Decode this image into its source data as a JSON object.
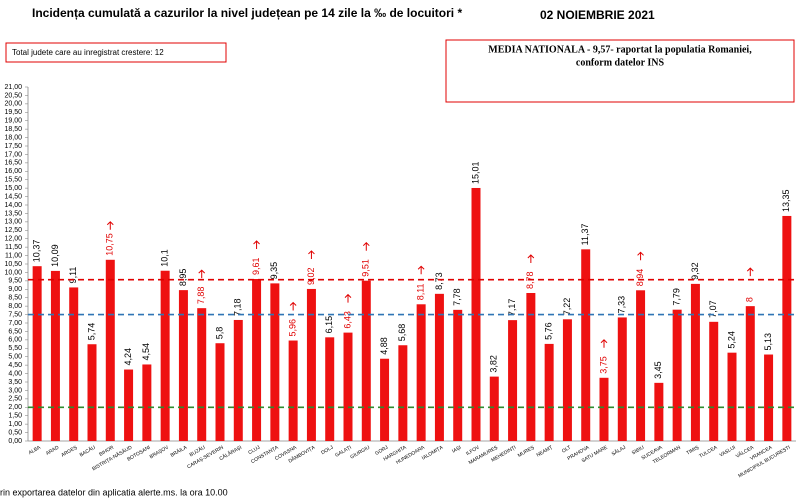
{
  "chart_data": {
    "type": "bar",
    "title": "Incidența cumulată a cazurilor la nivel județean pe 14 zile la ‰ de locuitori *",
    "date": "02 NOIEMBRIE 2021",
    "note_box": "Total judete care au inregistrat crestere: 12",
    "national_box": [
      "MEDIA NATIONALA - 9,57-  raportat la populatia Romaniei,",
      "conform datelor INS"
    ],
    "footer": "rin exportarea datelor din aplicatia alerte.ms. la ora 10.00",
    "categories": [
      "ALBA",
      "ARAD",
      "ARGEȘ",
      "BACĂU",
      "BIHOR",
      "BISTRIȚA-NĂSĂUD",
      "BOTOȘANI",
      "BRAȘOV",
      "BRĂILA",
      "BUZĂU",
      "CARAȘ-SEVERIN",
      "CĂLĂRAȘI",
      "CLUJ",
      "CONSTANȚA",
      "COVASNA",
      "DÂMBOVIȚA",
      "DOLJ",
      "GALAȚI",
      "GIURGIU",
      "GORJ",
      "HARGHITA",
      "HUNEDOARA",
      "IALOMIȚA",
      "IAȘI",
      "ILFOV",
      "MARAMUREȘ",
      "MEHEDINȚI",
      "MUREȘ",
      "NEAMȚ",
      "OLT",
      "PRAHOVA",
      "SATU MARE",
      "SĂLAJ",
      "SIBIU",
      "SUCEAVA",
      "TELEORMAN",
      "TIMIȘ",
      "TULCEA",
      "VASLUI",
      "VÂLCEA",
      "VRANCEA",
      "MUNICIPIUL BUCUREȘTI"
    ],
    "values": [
      10.37,
      10.09,
      9.11,
      5.74,
      10.75,
      4.24,
      4.54,
      10.1,
      8.95,
      7.88,
      5.8,
      7.18,
      9.61,
      9.35,
      5.96,
      9.02,
      6.15,
      6.43,
      9.51,
      4.88,
      5.68,
      8.11,
      8.73,
      7.78,
      15.01,
      3.82,
      7.17,
      8.78,
      5.76,
      7.22,
      11.37,
      3.75,
      7.33,
      8.94,
      3.45,
      7.79,
      9.32,
      7.07,
      5.24,
      8,
      5.13,
      13.35
    ],
    "value_labels": [
      "10,37",
      "10,09",
      "9,11",
      "5,74",
      "10,75",
      "4,24",
      "4,54",
      "10,1",
      "8,95",
      "7,88",
      "5,8",
      "7,18",
      "9,61",
      "9,35",
      "5,96",
      "9,02",
      "6,15",
      "6,43",
      "9,51",
      "4,88",
      "5,68",
      "8,11",
      "8,73",
      "7,78",
      "15,01",
      "3,82",
      "7,17",
      "8,78",
      "5,76",
      "7,22",
      "11,37",
      "3,75",
      "7,33",
      "8,94",
      "3,45",
      "7,79",
      "9,32",
      "7,07",
      "5,24",
      "8",
      "5,13",
      "13,35"
    ],
    "label_colors": [
      "#000000",
      "#000000",
      "#000000",
      "#000000",
      "#e00000",
      "#000000",
      "#000000",
      "#000000",
      "#000000",
      "#e00000",
      "#000000",
      "#000000",
      "#e00000",
      "#000000",
      "#e00000",
      "#e00000",
      "#000000",
      "#e00000",
      "#e00000",
      "#000000",
      "#000000",
      "#e00000",
      "#000000",
      "#000000",
      "#000000",
      "#000000",
      "#000000",
      "#e00000",
      "#000000",
      "#000000",
      "#000000",
      "#e00000",
      "#000000",
      "#e00000",
      "#000000",
      "#000000",
      "#000000",
      "#000000",
      "#000000",
      "#e00000",
      "#000000",
      "#000000"
    ],
    "color": "#ee1111",
    "reference_lines": [
      {
        "value": 9.57,
        "color": "#e00000"
      },
      {
        "value": 7.5,
        "color": "#2f75b5"
      },
      {
        "value": 2,
        "color": "#2e8b2e"
      }
    ],
    "ylim": [
      0,
      21
    ],
    "yticks": [
      {
        "value": 0,
        "label": "0,00"
      },
      {
        "value": 0.5,
        "label": "0,50"
      },
      {
        "value": 1,
        "label": "1,00"
      },
      {
        "value": 1.5,
        "label": "1,50"
      },
      {
        "value": 2,
        "label": "2,00"
      },
      {
        "value": 2.5,
        "label": "2,50"
      },
      {
        "value": 3,
        "label": "3,00"
      },
      {
        "value": 3.5,
        "label": "3,50"
      },
      {
        "value": 4,
        "label": "4,00"
      },
      {
        "value": 4.5,
        "label": "4,50"
      },
      {
        "value": 5,
        "label": "5,00"
      },
      {
        "value": 5.5,
        "label": "5,50"
      },
      {
        "value": 6,
        "label": "6,00"
      },
      {
        "value": 6.5,
        "label": "6,50"
      },
      {
        "value": 7,
        "label": "7,00"
      },
      {
        "value": 7.5,
        "label": "7,50"
      },
      {
        "value": 8,
        "label": "8,00"
      },
      {
        "value": 8.5,
        "label": "8,50"
      },
      {
        "value": 9,
        "label": "9,00"
      },
      {
        "value": 9.5,
        "label": "9,50"
      },
      {
        "value": 10,
        "label": "10,00"
      },
      {
        "value": 10.5,
        "label": "10,50"
      },
      {
        "value": 11,
        "label": "11,00"
      },
      {
        "value": 11.5,
        "label": "11,50"
      },
      {
        "value": 12,
        "label": "12,00"
      },
      {
        "value": 12.5,
        "label": "12,50"
      },
      {
        "value": 13,
        "label": "13,00"
      },
      {
        "value": 13.5,
        "label": "13,50"
      },
      {
        "value": 14,
        "label": "14,00"
      },
      {
        "value": 14.5,
        "label": "14,50"
      },
      {
        "value": 15,
        "label": "15,00"
      },
      {
        "value": 15.5,
        "label": "15,50"
      },
      {
        "value": 16,
        "label": "16,00"
      },
      {
        "value": 16.5,
        "label": "16,50"
      },
      {
        "value": 17,
        "label": "17,00"
      },
      {
        "value": 17.5,
        "label": "17,50"
      },
      {
        "value": 18,
        "label": "18,00"
      },
      {
        "value": 18.5,
        "label": "18,50"
      },
      {
        "value": 19,
        "label": "19,00"
      },
      {
        "value": 19.5,
        "label": "19,50"
      },
      {
        "value": 20,
        "label": "20,00"
      },
      {
        "value": 20.5,
        "label": "20,50"
      },
      {
        "value": 21,
        "label": "21,00"
      }
    ],
    "grid": false
  }
}
